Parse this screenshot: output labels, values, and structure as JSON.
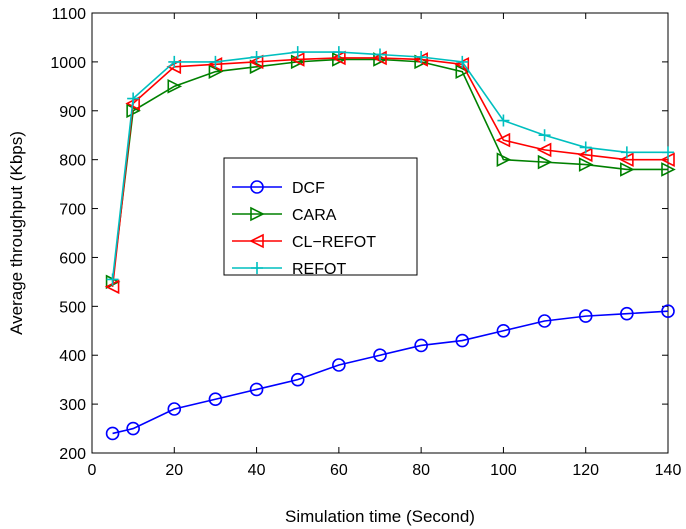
{
  "chart_data": {
    "type": "line",
    "xlabel": "Simulation time (Second)",
    "ylabel": "Average throughput (Kbps)",
    "xlim": [
      0,
      140
    ],
    "ylim": [
      200,
      1100
    ],
    "xticks": [
      0,
      20,
      40,
      60,
      80,
      100,
      120,
      140
    ],
    "yticks": [
      200,
      300,
      400,
      500,
      600,
      700,
      800,
      900,
      1000,
      1100
    ],
    "x": [
      5,
      10,
      20,
      30,
      40,
      50,
      60,
      70,
      80,
      90,
      100,
      110,
      120,
      130,
      140
    ],
    "grid": false,
    "legend_position": "center-left",
    "series": [
      {
        "name": "DCF",
        "color": "#0000ff",
        "marker": "circle",
        "values": [
          240,
          250,
          290,
          310,
          330,
          350,
          380,
          400,
          420,
          430,
          450,
          470,
          480,
          485,
          490
        ]
      },
      {
        "name": "CARA",
        "color": "#008000",
        "marker": "triangle-right",
        "values": [
          550,
          900,
          950,
          980,
          990,
          1000,
          1005,
          1005,
          1000,
          980,
          800,
          795,
          790,
          780,
          780
        ]
      },
      {
        "name": "CL−REFOT",
        "color": "#ff0000",
        "marker": "triangle-left",
        "values": [
          540,
          915,
          990,
          995,
          1000,
          1005,
          1008,
          1008,
          1005,
          995,
          840,
          820,
          810,
          800,
          800
        ]
      },
      {
        "name": "REFOT",
        "color": "#00bfbf",
        "marker": "plus",
        "values": [
          555,
          925,
          1000,
          1000,
          1010,
          1020,
          1020,
          1015,
          1010,
          1000,
          880,
          850,
          825,
          815,
          815
        ]
      }
    ]
  }
}
